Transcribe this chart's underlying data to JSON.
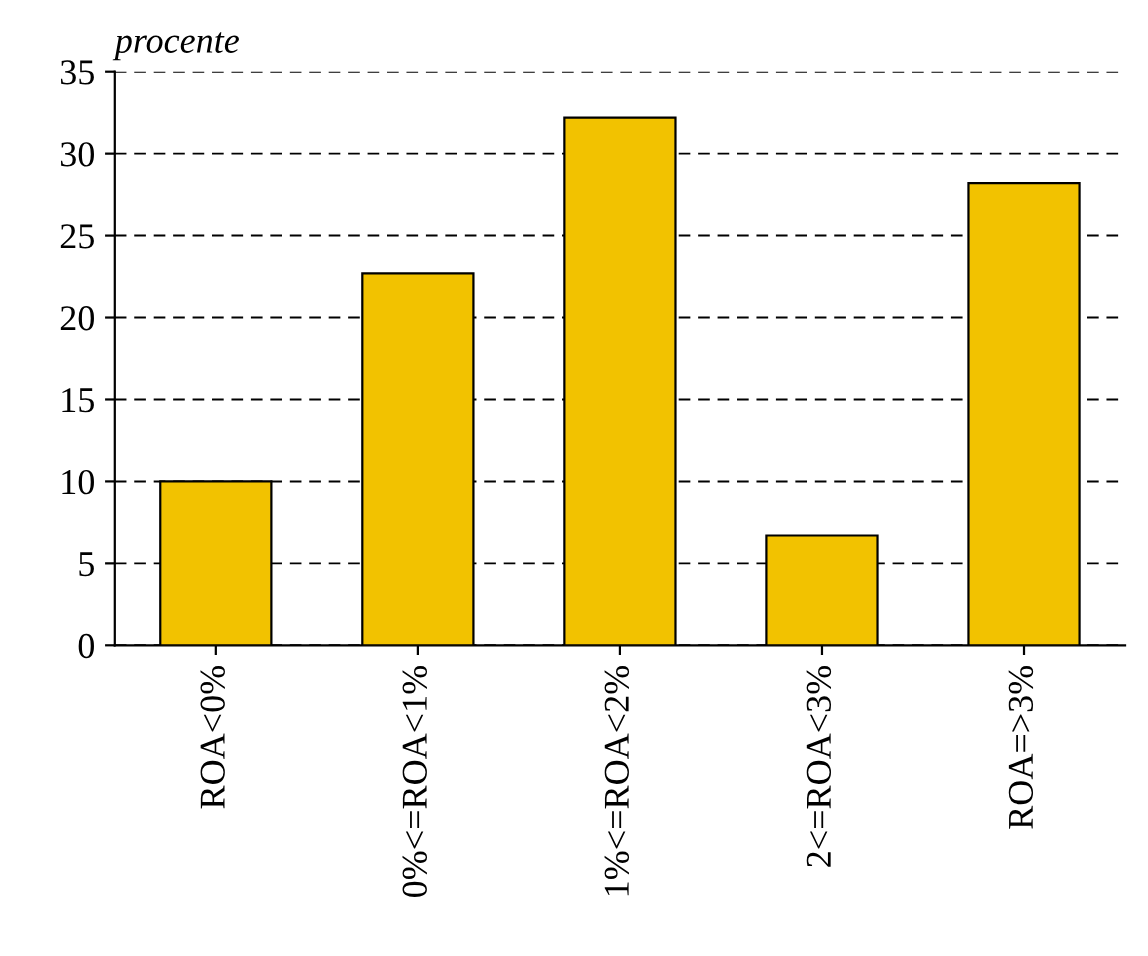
{
  "chart_data": {
    "type": "bar",
    "ylabel": "procente",
    "categories": [
      "ROA<0%",
      "0%<=ROA<1%",
      "1%<=ROA<2%",
      "2<=ROA<3%",
      "ROA=>3%"
    ],
    "values": [
      10,
      22.7,
      32.2,
      6.7,
      28.2
    ],
    "color": "#f2c200",
    "ylim": [
      0,
      35
    ],
    "yticks": [
      0,
      5,
      10,
      15,
      20,
      25,
      30,
      35
    ],
    "grid": "y"
  }
}
